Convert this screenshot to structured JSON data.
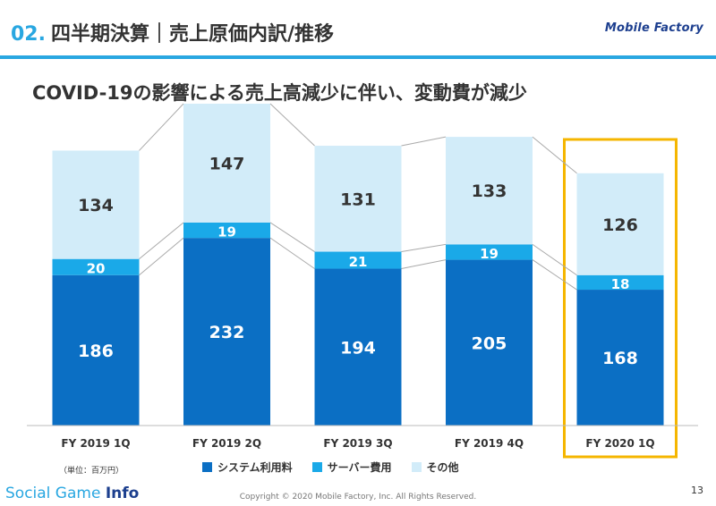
{
  "header": {
    "number": "02.",
    "title": "四半期決算｜売上原価内訳/推移",
    "logo": "Mobile Factory"
  },
  "subtitle": "COVID-19の影響による売上高減少に伴い、変動費が減少",
  "unit_note": "（単位：百万円）",
  "legend": [
    {
      "label": "システム利用料",
      "color": "#0b6fc4"
    },
    {
      "label": "サーバー費用",
      "color": "#1aa9e8"
    },
    {
      "label": "その他",
      "color": "#d2ecf9"
    }
  ],
  "footer": {
    "brand_a": "Social Game ",
    "brand_b": "Info",
    "copyright": "Copyright © 2020 Mobile Factory, Inc. All Rights Reserved.",
    "page": "13"
  },
  "chart_data": {
    "type": "bar",
    "stacked": true,
    "categories": [
      "FY 2019 1Q",
      "FY 2019 2Q",
      "FY 2019 3Q",
      "FY 2019 4Q",
      "FY 2020 1Q"
    ],
    "series": [
      {
        "name": "システム利用料",
        "color": "#0b6fc4",
        "values": [
          186,
          232,
          194,
          205,
          168
        ]
      },
      {
        "name": "サーバー費用",
        "color": "#1aa9e8",
        "values": [
          20,
          19,
          21,
          19,
          18
        ]
      },
      {
        "name": "その他",
        "color": "#d2ecf9",
        "values": [
          134,
          147,
          131,
          133,
          126
        ]
      }
    ],
    "highlight_category": "FY 2020 1Q",
    "highlight_color": "#f5b600",
    "ylim": [
      0,
      398
    ]
  }
}
